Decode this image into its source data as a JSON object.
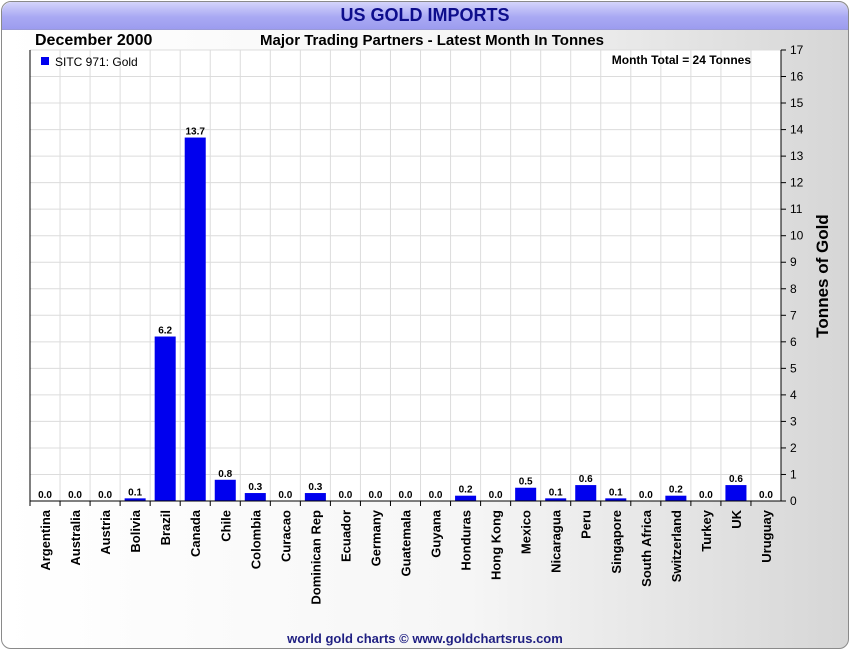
{
  "header": {
    "title": "US GOLD IMPORTS",
    "date": "December 2000",
    "subtitle": "Major Trading Partners - Latest Month In Tonnes"
  },
  "footer": "world gold charts © www.goldchartsrus.com",
  "colors": {
    "bar": "#0000ee",
    "title_bar": "#a9a9f3",
    "title_text": "#0d0d8c"
  },
  "chart_data": {
    "type": "bar",
    "categories": [
      "Argentina",
      "Australia",
      "Austria",
      "Bolivia",
      "Brazil",
      "Canada",
      "Chile",
      "Colombia",
      "Curacao",
      "Dominican Rep",
      "Ecuador",
      "Germany",
      "Guatemala",
      "Guyana",
      "Honduras",
      "Hong Kong",
      "Mexico",
      "Nicaragua",
      "Peru",
      "Singapore",
      "South Africa",
      "Switzerland",
      "Turkey",
      "UK",
      "Uruguay"
    ],
    "series": [
      {
        "name": "SITC 971: Gold",
        "values": [
          0.0,
          0.0,
          0.0,
          0.1,
          6.2,
          13.7,
          0.8,
          0.3,
          0.0,
          0.3,
          0.0,
          0.0,
          0.0,
          0.0,
          0.2,
          0.0,
          0.5,
          0.1,
          0.6,
          0.1,
          0.0,
          0.2,
          0.0,
          0.6,
          0.0
        ],
        "labels": [
          "0.0",
          "0.0",
          "0.0",
          "0.1",
          "6.2",
          "13.7",
          "0.8",
          "0.3",
          "0.0",
          "0.3",
          "0.0",
          "0.0",
          "0.0",
          "0.0",
          "0.2",
          "0.0",
          "0.5",
          "0.1",
          "0.6",
          "0.1",
          "0.0",
          "0.2",
          "0.0",
          "0.6",
          "0.0"
        ]
      }
    ],
    "ylabel": "Tonnes of Gold",
    "ylim": [
      0,
      17
    ],
    "yticks": [
      "0",
      "1",
      "2",
      "3",
      "4",
      "5",
      "6",
      "7",
      "8",
      "9",
      "10",
      "11",
      "12",
      "13",
      "14",
      "15",
      "16",
      "17"
    ],
    "y_axis_side": "right",
    "grid": true,
    "legend_position": "top-left",
    "annotation": "Month Total = 24 Tonnes"
  }
}
